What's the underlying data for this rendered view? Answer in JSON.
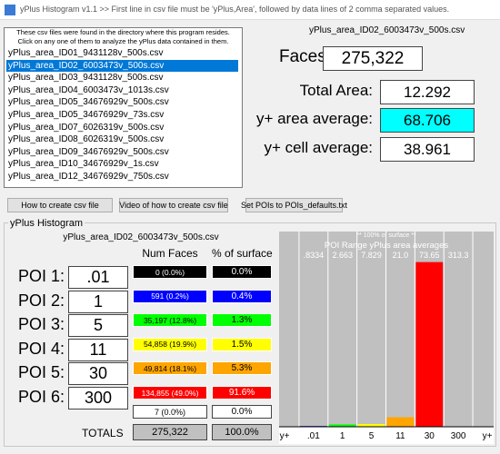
{
  "window": {
    "title": "yPlus Histogram v1.1 >> First line in csv file must be 'yPlus,Area', followed by data lines of 2 comma separated values."
  },
  "files": {
    "intro": [
      "These csv files were found in the directory where this program resides.",
      "Click on any one of them to analyze the yPlus data contained in them."
    ],
    "items": [
      "yPlus_area_ID01_9431128v_500s.csv",
      "yPlus_area_ID02_6003473v_500s.csv",
      "yPlus_area_ID03_9431128v_500s.csv",
      "yPlus_area_ID04_6003473v_1013s.csv",
      "yPlus_area_ID05_34676929v_500s.csv",
      "yPlus_area_ID05_34676929v_73s.csv",
      "yPlus_area_ID07_6026319v_500s.csv",
      "yPlus_area_ID08_6026319v_500s.csv",
      "yPlus_area_ID09_34676929v_500s.csv",
      "yPlus_area_ID10_34676929v_1s.csv",
      "yPlus_area_ID12_34676929v_750s.csv"
    ],
    "selected": 1
  },
  "summary": {
    "file": "yPlus_area_ID02_6003473v_500s.csv",
    "faces_label": "Faces:",
    "faces": "275,322",
    "area_label": "Total Area:",
    "area": "12.292",
    "area_avg_label": "y+ area average:",
    "area_avg": "68.706",
    "cell_avg_label": "y+ cell average:",
    "cell_avg": "38.961"
  },
  "buttons": [
    "How to create csv file",
    "Video of how to create csv file",
    "Set POIs to POIs_defaults.txt"
  ],
  "histogram": {
    "group": "yPlus Histogram",
    "file": "yPlus_area_ID02_6003473v_500s.csv",
    "headers": [
      "Num Faces",
      "% of surface"
    ],
    "rows": [
      {
        "poi": "POI 1:",
        "limit": ".01",
        "faces": "0 (0.0%)",
        "surface": "0.0%",
        "color": "#000000",
        "text": "#ffffff"
      },
      {
        "poi": "POI 2:",
        "limit": "1",
        "faces": "591 (0.2%)",
        "surface": "0.4%",
        "color": "#0000ff",
        "text": "#ffffff"
      },
      {
        "poi": "POI 3:",
        "limit": "5",
        "faces": "35,197 (12.8%)",
        "surface": "1.3%",
        "color": "#00ff00",
        "text": "#000000"
      },
      {
        "poi": "POI 4:",
        "limit": "11",
        "faces": "54,858 (19.9%)",
        "surface": "1.5%",
        "color": "#ffff00",
        "text": "#000000"
      },
      {
        "poi": "POI 5:",
        "limit": "30",
        "faces": "49,814 (18.1%)",
        "surface": "5.3%",
        "color": "#ffa500",
        "text": "#000000"
      },
      {
        "poi": "POI 6:",
        "limit": "300",
        "faces": "134,855 (49.0%)",
        "surface": "91.6%",
        "color": "#ff0000",
        "text": "#ffffff"
      }
    ],
    "extra": {
      "faces": "7 (0.0%)",
      "surface": "0.0%"
    },
    "totals": {
      "label": "TOTALS",
      "faces": "275,322",
      "surface": "100.0%"
    }
  },
  "chart": {
    "type": "bar",
    "title": "** 100% of surface **",
    "subtitle": "POI Range yPlus area averages",
    "averages": [
      ".8334",
      "2.663",
      "7.829",
      "21.0",
      "73.65",
      "313.3"
    ],
    "xlabels": [
      "y+",
      ".01",
      "1",
      "5",
      "11",
      "30",
      "300",
      "y+"
    ],
    "values": [
      0.0,
      0.4,
      1.3,
      1.5,
      5.3,
      91.6,
      0.0
    ],
    "colors": [
      "#000000",
      "#0000ff",
      "#00ff00",
      "#ffff00",
      "#ffa500",
      "#ff0000",
      "#c0c0c0"
    ],
    "ylim": [
      0,
      100
    ]
  }
}
